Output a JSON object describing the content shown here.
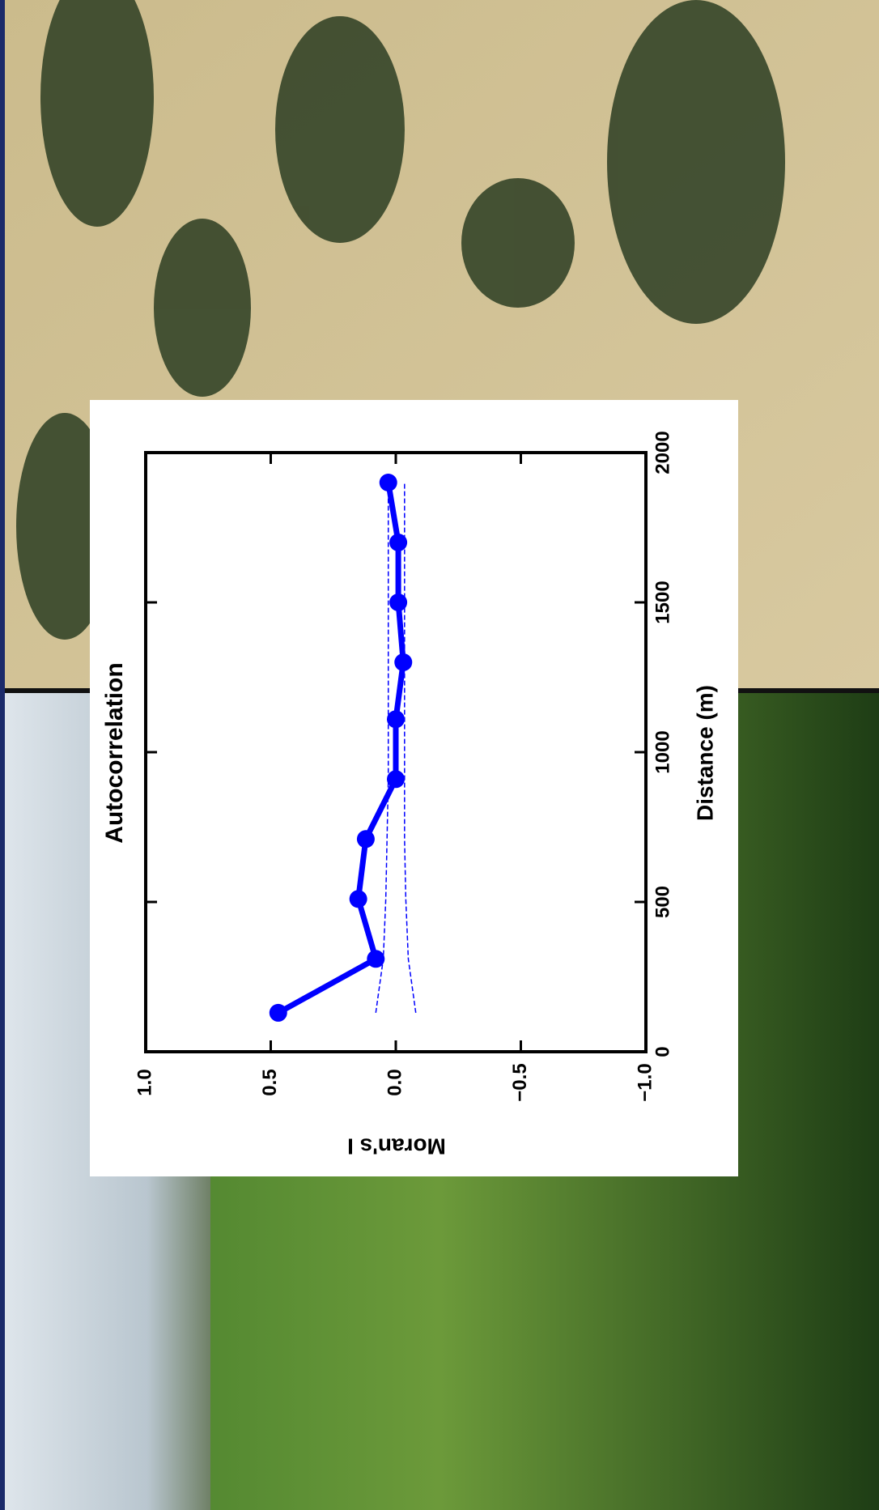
{
  "chart_data": {
    "type": "line",
    "title": "Autocorrelation",
    "x_label": "Distance (m)",
    "y_label": "Moran's I",
    "x": [
      130,
      310,
      510,
      710,
      910,
      1110,
      1300,
      1500,
      1700,
      1900
    ],
    "series": [
      {
        "color": "#0000ff",
        "values": [
          0.47,
          0.08,
          0.15,
          0.12,
          0.0,
          0.0,
          -0.03,
          -0.01,
          -0.01,
          0.03
        ],
        "markers": true
      },
      {
        "color": "#0000ff",
        "values": [
          0.08,
          0.05,
          0.04,
          0.035,
          0.03,
          0.03,
          0.03,
          0.03,
          0.03,
          0.03
        ],
        "markers": false,
        "dashed": true
      },
      {
        "color": "#0000ff",
        "values": [
          -0.08,
          -0.05,
          -0.04,
          -0.035,
          -0.035,
          -0.035,
          -0.035,
          -0.035,
          -0.035,
          -0.035
        ],
        "markers": false,
        "dashed": true
      }
    ],
    "xlim": [
      0,
      2000
    ],
    "xticks": [
      0,
      500,
      1000,
      1500,
      2000
    ],
    "ylim": [
      -1,
      1
    ],
    "yticks": [
      {
        "value": -1,
        "label": "−1.0"
      },
      {
        "value": -0.5,
        "label": "−0.5"
      },
      {
        "value": 0,
        "label": "0.0"
      },
      {
        "value": 0.5,
        "label": "0.5"
      },
      {
        "value": 1,
        "label": "1.0"
      }
    ]
  }
}
